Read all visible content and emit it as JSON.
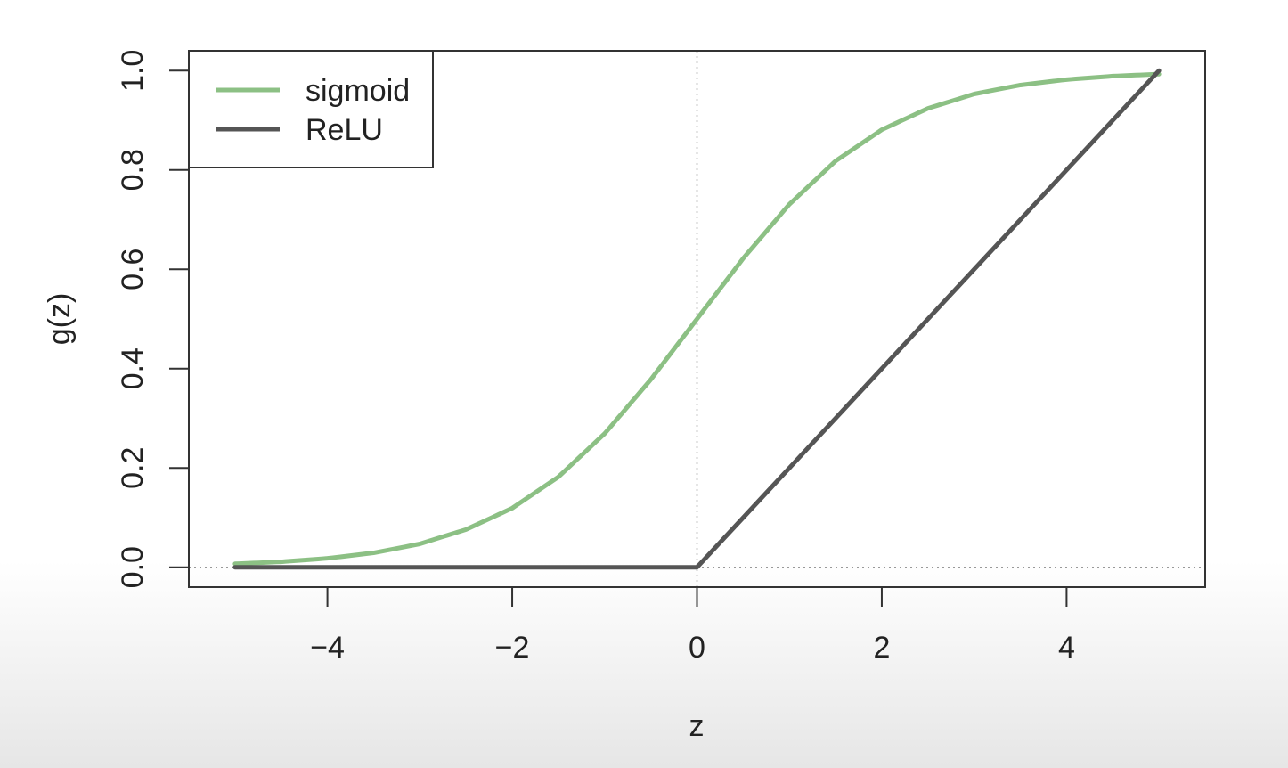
{
  "chart_data": {
    "type": "line",
    "title": "",
    "xlabel": "z",
    "ylabel": "g(z)",
    "xlim": [
      -5.5,
      5.5
    ],
    "ylim": [
      -0.04,
      1.04
    ],
    "x_ticks": [
      -4,
      -2,
      0,
      2,
      4
    ],
    "x_tick_labels": [
      "−4",
      "−2",
      "0",
      "2",
      "4"
    ],
    "y_ticks": [
      0.0,
      0.2,
      0.4,
      0.6,
      0.8,
      1.0
    ],
    "y_tick_labels": [
      "0.0",
      "0.2",
      "0.4",
      "0.6",
      "0.8",
      "1.0"
    ],
    "grid": false,
    "reference_lines": [
      {
        "orientation": "vertical",
        "value": 0,
        "style": "dotted"
      },
      {
        "orientation": "horizontal",
        "value": 0,
        "style": "dotted"
      }
    ],
    "legend": {
      "position": "top-left"
    },
    "series": [
      {
        "name": "sigmoid",
        "color": "#8cc084",
        "x": [
          -5,
          -4.5,
          -4,
          -3.5,
          -3,
          -2.5,
          -2,
          -1.5,
          -1,
          -0.5,
          0,
          0.5,
          1,
          1.5,
          2,
          2.5,
          3,
          3.5,
          4,
          4.5,
          5
        ],
        "y": [
          0.007,
          0.011,
          0.018,
          0.029,
          0.047,
          0.076,
          0.119,
          0.182,
          0.269,
          0.378,
          0.5,
          0.622,
          0.731,
          0.818,
          0.881,
          0.924,
          0.953,
          0.971,
          0.982,
          0.989,
          0.993
        ]
      },
      {
        "name": "ReLU",
        "color": "#555555",
        "x": [
          -5,
          0,
          5
        ],
        "y": [
          0,
          0,
          1.0
        ]
      }
    ]
  }
}
